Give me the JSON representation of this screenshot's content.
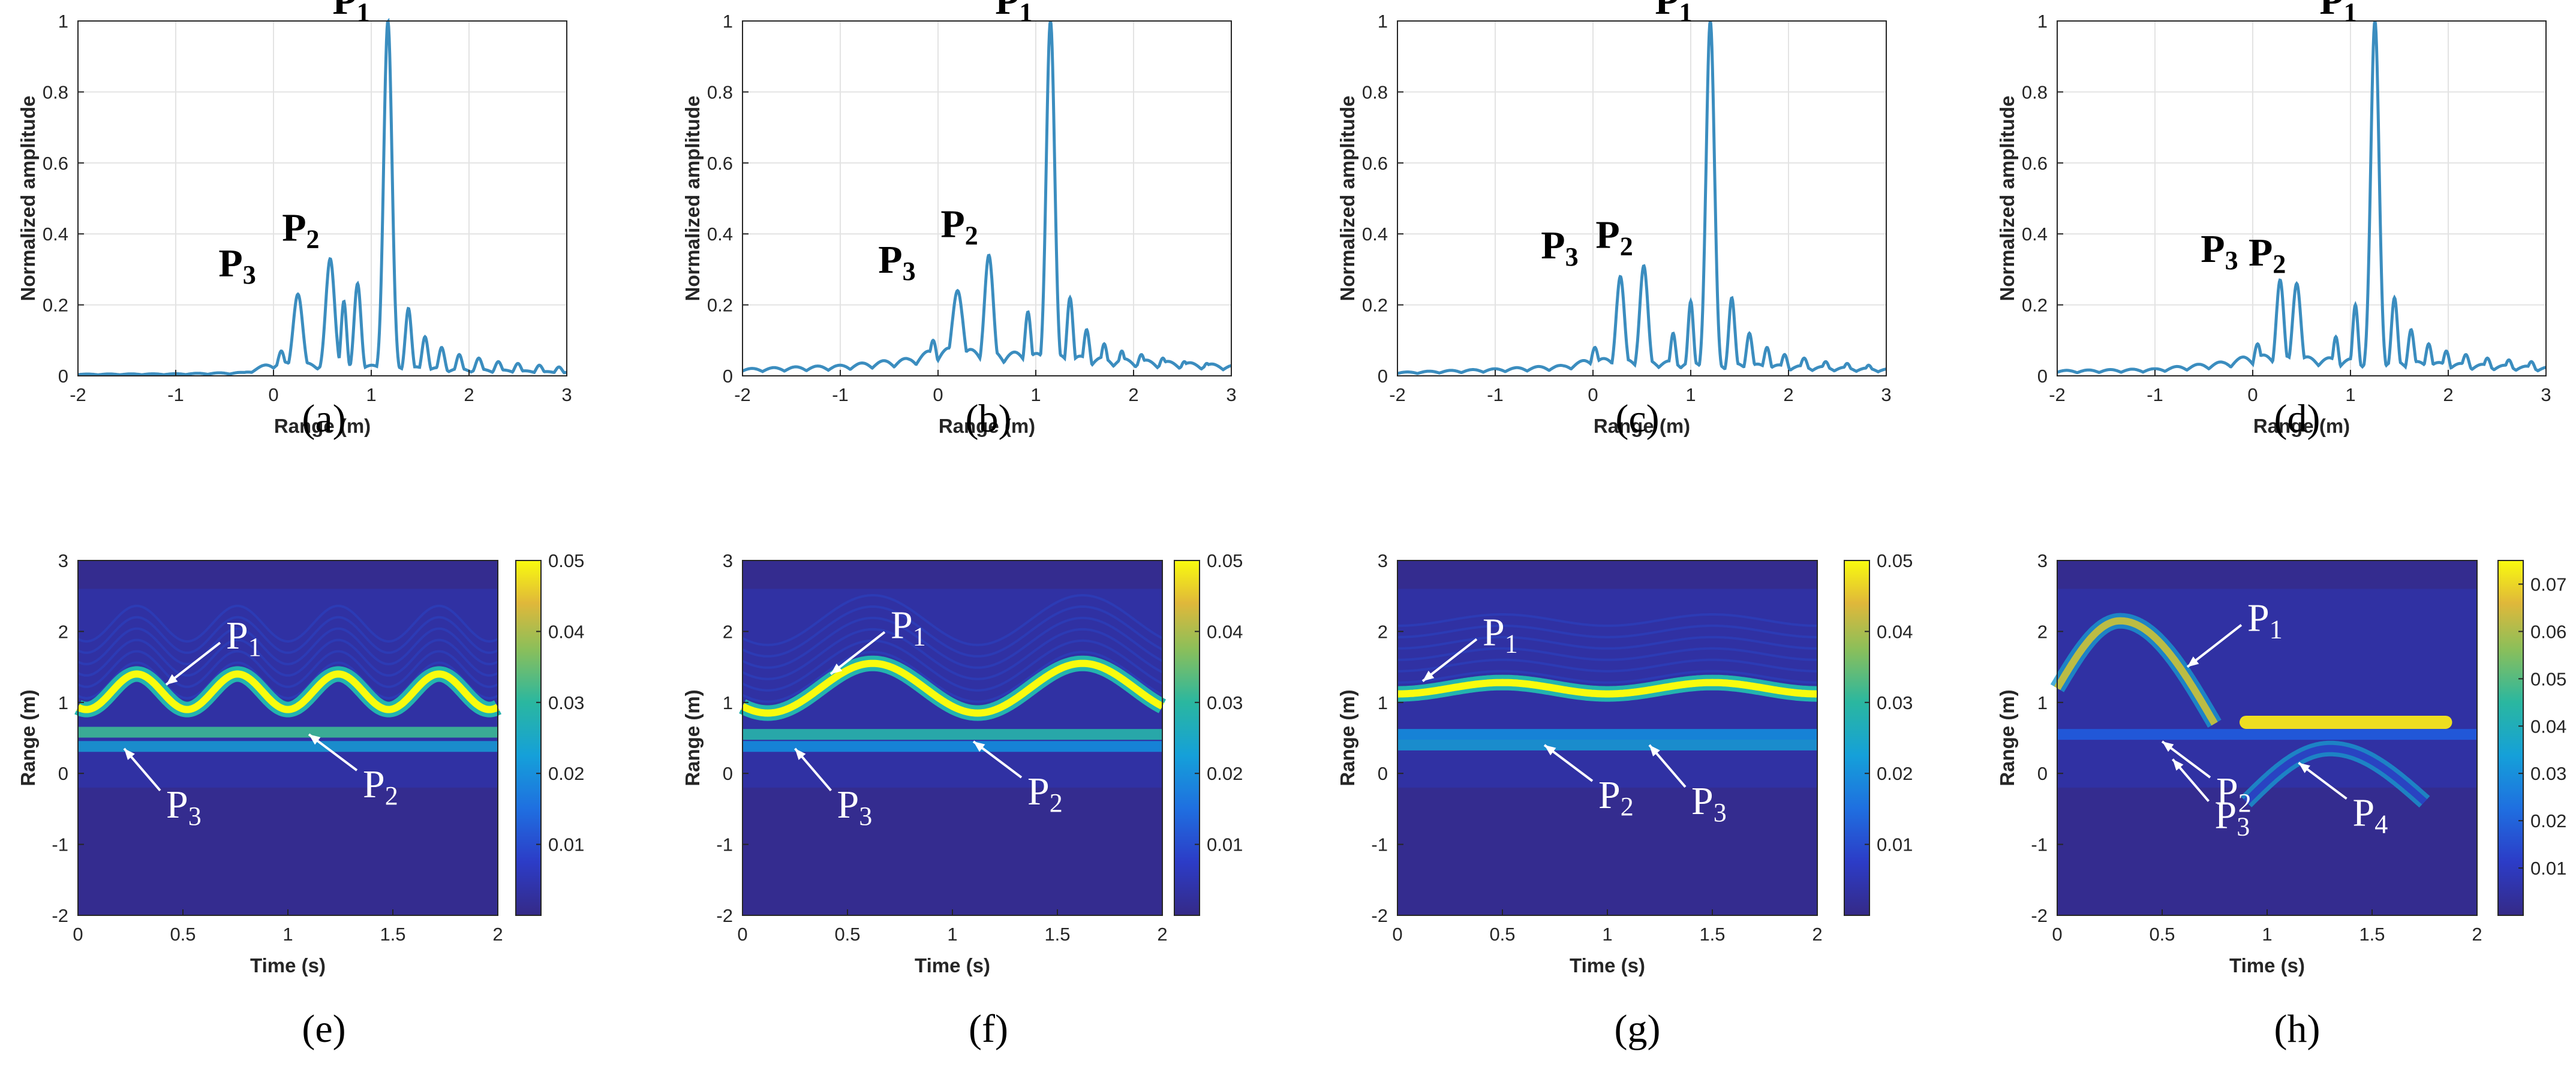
{
  "chart_data": [
    {
      "type": "line",
      "panel": "(a)",
      "xlabel": "Range (m)",
      "ylabel": "Normalized amplitude",
      "xlim": [
        -2,
        3
      ],
      "ylim": [
        0,
        1
      ],
      "xticks": [
        -2,
        -1,
        0,
        1,
        2,
        3
      ],
      "yticks": [
        0,
        0.2,
        0.4,
        0.6,
        0.8,
        1
      ],
      "line_color": "#3b8dbf",
      "baseline": [
        [
          -2,
          0.005
        ],
        [
          -1,
          0.006
        ],
        [
          -0.3,
          0.01
        ],
        [
          0,
          0.04
        ],
        [
          3,
          0.01
        ]
      ],
      "peaks": [
        {
          "x": 1.17,
          "y": 1.0,
          "w": 0.06
        },
        {
          "x": 0.58,
          "y": 0.33,
          "w": 0.065
        },
        {
          "x": 0.25,
          "y": 0.23,
          "w": 0.07
        },
        {
          "x": 0.86,
          "y": 0.26,
          "w": 0.05
        },
        {
          "x": 0.72,
          "y": 0.21,
          "w": 0.04
        },
        {
          "x": 0.08,
          "y": 0.07,
          "w": 0.05
        },
        {
          "x": 1.38,
          "y": 0.19,
          "w": 0.045
        },
        {
          "x": 1.55,
          "y": 0.11,
          "w": 0.045
        },
        {
          "x": 1.72,
          "y": 0.08,
          "w": 0.045
        },
        {
          "x": 1.9,
          "y": 0.06,
          "w": 0.045
        },
        {
          "x": 2.1,
          "y": 0.05,
          "w": 0.05
        },
        {
          "x": 2.3,
          "y": 0.04,
          "w": 0.05
        },
        {
          "x": 2.5,
          "y": 0.035,
          "w": 0.05
        },
        {
          "x": 2.72,
          "y": 0.03,
          "w": 0.05
        },
        {
          "x": 2.92,
          "y": 0.025,
          "w": 0.05
        }
      ],
      "annotations": [
        {
          "label": "P",
          "sub": "1",
          "x": 1.17,
          "y": 1.0
        },
        {
          "label": "P",
          "sub": "2",
          "x": 0.58,
          "y": 0.33
        },
        {
          "label": "P",
          "sub": "3",
          "x": 0.25,
          "y": 0.23
        }
      ]
    },
    {
      "type": "line",
      "panel": "(b)",
      "xlabel": "Range (m)",
      "ylabel": "Normalized amplitude",
      "xlim": [
        -2,
        3
      ],
      "ylim": [
        0,
        1
      ],
      "xticks": [
        -2,
        -1,
        0,
        1,
        2,
        3
      ],
      "yticks": [
        0,
        0.2,
        0.4,
        0.6,
        0.8,
        1
      ],
      "line_color": "#3b8dbf",
      "baseline": [
        [
          -2,
          0.02
        ],
        [
          -1,
          0.03
        ],
        [
          -0.3,
          0.05
        ],
        [
          0,
          0.08
        ],
        [
          3,
          0.03
        ]
      ],
      "peaks": [
        {
          "x": 1.15,
          "y": 1.0,
          "w": 0.06
        },
        {
          "x": 0.52,
          "y": 0.34,
          "w": 0.065
        },
        {
          "x": 0.2,
          "y": 0.24,
          "w": 0.08
        },
        {
          "x": 0.92,
          "y": 0.18,
          "w": 0.045
        },
        {
          "x": -0.05,
          "y": 0.1,
          "w": 0.05
        },
        {
          "x": 1.35,
          "y": 0.22,
          "w": 0.045
        },
        {
          "x": 1.52,
          "y": 0.13,
          "w": 0.045
        },
        {
          "x": 1.7,
          "y": 0.09,
          "w": 0.045
        },
        {
          "x": 1.88,
          "y": 0.07,
          "w": 0.045
        },
        {
          "x": 2.08,
          "y": 0.06,
          "w": 0.05
        },
        {
          "x": 2.3,
          "y": 0.05,
          "w": 0.05
        },
        {
          "x": 2.52,
          "y": 0.04,
          "w": 0.05
        },
        {
          "x": 2.75,
          "y": 0.035,
          "w": 0.05
        }
      ],
      "annotations": [
        {
          "label": "P",
          "sub": "1",
          "x": 1.15,
          "y": 1.0
        },
        {
          "label": "P",
          "sub": "2",
          "x": 0.52,
          "y": 0.34
        },
        {
          "label": "P",
          "sub": "3",
          "x": 0.2,
          "y": 0.24
        }
      ]
    },
    {
      "type": "line",
      "panel": "(c)",
      "xlabel": "Range (m)",
      "ylabel": "Normalized amplitude",
      "xlim": [
        -2,
        3
      ],
      "ylim": [
        0,
        1
      ],
      "xticks": [
        -2,
        -1,
        0,
        1,
        2,
        3
      ],
      "yticks": [
        0,
        0.2,
        0.4,
        0.6,
        0.8,
        1
      ],
      "line_color": "#3b8dbf",
      "baseline": [
        [
          -2,
          0.01
        ],
        [
          -1,
          0.02
        ],
        [
          -0.3,
          0.03
        ],
        [
          0,
          0.05
        ],
        [
          3,
          0.02
        ]
      ],
      "peaks": [
        {
          "x": 1.2,
          "y": 1.0,
          "w": 0.06
        },
        {
          "x": 0.52,
          "y": 0.31,
          "w": 0.06
        },
        {
          "x": 0.28,
          "y": 0.28,
          "w": 0.06
        },
        {
          "x": 1.0,
          "y": 0.21,
          "w": 0.04
        },
        {
          "x": 0.82,
          "y": 0.12,
          "w": 0.04
        },
        {
          "x": 0.02,
          "y": 0.08,
          "w": 0.05
        },
        {
          "x": 1.42,
          "y": 0.22,
          "w": 0.045
        },
        {
          "x": 1.6,
          "y": 0.12,
          "w": 0.045
        },
        {
          "x": 1.78,
          "y": 0.08,
          "w": 0.045
        },
        {
          "x": 1.96,
          "y": 0.06,
          "w": 0.045
        },
        {
          "x": 2.16,
          "y": 0.05,
          "w": 0.05
        },
        {
          "x": 2.38,
          "y": 0.04,
          "w": 0.05
        },
        {
          "x": 2.6,
          "y": 0.035,
          "w": 0.05
        },
        {
          "x": 2.82,
          "y": 0.03,
          "w": 0.05
        }
      ],
      "annotations": [
        {
          "label": "P",
          "sub": "1",
          "x": 1.2,
          "y": 1.0
        },
        {
          "label": "P",
          "sub": "2",
          "x": 0.52,
          "y": 0.31
        },
        {
          "label": "P",
          "sub": "3",
          "x": 0.28,
          "y": 0.28
        }
      ]
    },
    {
      "type": "line",
      "panel": "(d)",
      "xlabel": "Range (m)",
      "ylabel": "Normalized amplitude",
      "xlim": [
        -2,
        3
      ],
      "ylim": [
        0,
        1
      ],
      "xticks": [
        -2,
        -1,
        0,
        1,
        2,
        3
      ],
      "yticks": [
        0,
        0.2,
        0.4,
        0.6,
        0.8,
        1
      ],
      "line_color": "#3b8dbf",
      "baseline": [
        [
          -2,
          0.015
        ],
        [
          -1,
          0.02
        ],
        [
          -0.3,
          0.04
        ],
        [
          0,
          0.06
        ],
        [
          3,
          0.025
        ]
      ],
      "peaks": [
        {
          "x": 1.25,
          "y": 1.0,
          "w": 0.06
        },
        {
          "x": 0.45,
          "y": 0.26,
          "w": 0.06
        },
        {
          "x": 0.28,
          "y": 0.27,
          "w": 0.055
        },
        {
          "x": 1.05,
          "y": 0.2,
          "w": 0.04
        },
        {
          "x": 0.85,
          "y": 0.11,
          "w": 0.04
        },
        {
          "x": 0.05,
          "y": 0.09,
          "w": 0.05
        },
        {
          "x": 1.45,
          "y": 0.22,
          "w": 0.045
        },
        {
          "x": 1.62,
          "y": 0.13,
          "w": 0.045
        },
        {
          "x": 1.8,
          "y": 0.09,
          "w": 0.045
        },
        {
          "x": 1.98,
          "y": 0.07,
          "w": 0.045
        },
        {
          "x": 2.18,
          "y": 0.06,
          "w": 0.05
        },
        {
          "x": 2.4,
          "y": 0.05,
          "w": 0.05
        },
        {
          "x": 2.62,
          "y": 0.045,
          "w": 0.05
        },
        {
          "x": 2.85,
          "y": 0.04,
          "w": 0.05
        }
      ],
      "annotations": [
        {
          "label": "P",
          "sub": "1",
          "x": 1.25,
          "y": 1.0
        },
        {
          "label": "P",
          "sub": "2",
          "x": 0.45,
          "y": 0.26
        },
        {
          "label": "P",
          "sub": "3",
          "x": 0.28,
          "y": 0.27
        }
      ]
    },
    {
      "type": "heatmap",
      "panel": "(e)",
      "xlabel": "Time (s)",
      "ylabel": "Range (m)",
      "xlim": [
        0,
        2
      ],
      "ylim": [
        -2,
        3
      ],
      "xticks": [
        0,
        0.5,
        1,
        1.5,
        2
      ],
      "yticks": [
        -2,
        -1,
        0,
        1,
        2,
        3
      ],
      "colorbar": {
        "ticks": [
          0.01,
          0.02,
          0.03,
          0.04,
          0.05
        ],
        "max": 0.05
      },
      "traces": [
        {
          "name": "P1",
          "kind": "sine",
          "center": 1.15,
          "amplitude": 0.25,
          "period": 0.48,
          "phase": 0.28,
          "intensity": 0.05
        },
        {
          "name": "P2",
          "kind": "flat",
          "center": 0.58,
          "intensity": 0.03
        },
        {
          "name": "P3",
          "kind": "flat",
          "center": 0.38,
          "intensity": 0.022
        }
      ],
      "annotations": [
        {
          "label": "P",
          "sub": "1",
          "target": [
            0.42,
            1.25
          ]
        },
        {
          "label": "P",
          "sub": "2",
          "target": [
            1.1,
            0.55
          ]
        },
        {
          "label": "P",
          "sub": "3",
          "target": [
            0.22,
            0.35
          ]
        }
      ]
    },
    {
      "type": "heatmap",
      "panel": "(f)",
      "xlabel": "Time (s)",
      "ylabel": "Range (m)",
      "xlim": [
        0,
        2
      ],
      "ylim": [
        -2,
        3
      ],
      "xticks": [
        0,
        0.5,
        1,
        1.5,
        2
      ],
      "yticks": [
        -2,
        -1,
        0,
        1,
        2,
        3
      ],
      "colorbar": {
        "ticks": [
          0.01,
          0.02,
          0.03,
          0.04,
          0.05
        ],
        "max": 0.05
      },
      "traces": [
        {
          "name": "P1",
          "kind": "sine",
          "center": 1.2,
          "amplitude": 0.35,
          "period": 1.0,
          "phase": 0.62,
          "intensity": 0.05
        },
        {
          "name": "P2",
          "kind": "flat",
          "center": 0.55,
          "intensity": 0.028
        },
        {
          "name": "P3",
          "kind": "flat",
          "center": 0.38,
          "intensity": 0.02
        }
      ],
      "annotations": [
        {
          "label": "P",
          "sub": "1",
          "target": [
            0.42,
            1.4
          ]
        },
        {
          "label": "P",
          "sub": "2",
          "target": [
            1.1,
            0.45
          ]
        },
        {
          "label": "P",
          "sub": "3",
          "target": [
            0.25,
            0.35
          ]
        }
      ]
    },
    {
      "type": "heatmap",
      "panel": "(g)",
      "xlabel": "Time (s)",
      "ylabel": "Range (m)",
      "xlim": [
        0,
        2
      ],
      "ylim": [
        -2,
        3
      ],
      "xticks": [
        0,
        0.5,
        1,
        1.5,
        2
      ],
      "yticks": [
        -2,
        -1,
        0,
        1,
        2,
        3
      ],
      "colorbar": {
        "ticks": [
          0.01,
          0.02,
          0.03,
          0.04,
          0.05
        ],
        "max": 0.05
      },
      "traces": [
        {
          "name": "P1",
          "kind": "sine",
          "center": 1.2,
          "amplitude": 0.08,
          "period": 1.0,
          "phase": 0.5,
          "intensity": 0.05
        },
        {
          "name": "P2",
          "kind": "flat",
          "center": 0.55,
          "intensity": 0.02
        },
        {
          "name": "P3",
          "kind": "flat",
          "center": 0.4,
          "intensity": 0.022
        }
      ],
      "annotations": [
        {
          "label": "P",
          "sub": "1",
          "target": [
            0.12,
            1.3
          ]
        },
        {
          "label": "P",
          "sub": "2",
          "target": [
            0.7,
            0.4
          ]
        },
        {
          "label": "P",
          "sub": "3",
          "target": [
            1.2,
            0.4
          ]
        }
      ]
    },
    {
      "type": "heatmap",
      "panel": "(h)",
      "xlabel": "Time (s)",
      "ylabel": "Range (m)",
      "xlim": [
        0,
        2
      ],
      "ylim": [
        -2,
        3
      ],
      "xticks": [
        0,
        0.5,
        1,
        1.5,
        2
      ],
      "yticks": [
        -2,
        -1,
        0,
        1,
        2,
        3
      ],
      "colorbar": {
        "ticks": [
          0.01,
          0.02,
          0.03,
          0.04,
          0.05,
          0.06,
          0.07
        ],
        "max": 0.075
      },
      "traces": [
        {
          "name": "P1",
          "kind": "arc",
          "x0": 0.0,
          "x1": 0.75,
          "base": 1.2,
          "peak": 2.15,
          "peak_x": 0.3,
          "end": 0.7,
          "intensity": 0.06
        },
        {
          "name": "P1b",
          "kind": "segment",
          "x0": 0.9,
          "x1": 1.85,
          "center": 0.72,
          "intensity": 0.07
        },
        {
          "name": "P2",
          "kind": "flat",
          "center": 0.55,
          "intensity": 0.018
        },
        {
          "name": "P4",
          "kind": "arc",
          "x0": 0.9,
          "x1": 1.75,
          "base": -0.4,
          "peak": 0.35,
          "peak_x": 1.3,
          "end": -0.4,
          "intensity": 0.012
        }
      ],
      "annotations": [
        {
          "label": "P",
          "sub": "1",
          "target": [
            0.62,
            1.5
          ]
        },
        {
          "label": "P",
          "sub": "2",
          "target": [
            0.5,
            0.45
          ]
        },
        {
          "label": "P",
          "sub": "3",
          "target": [
            0.55,
            0.2
          ]
        },
        {
          "label": "P",
          "sub": "4",
          "target": [
            1.15,
            0.15
          ]
        }
      ]
    }
  ]
}
